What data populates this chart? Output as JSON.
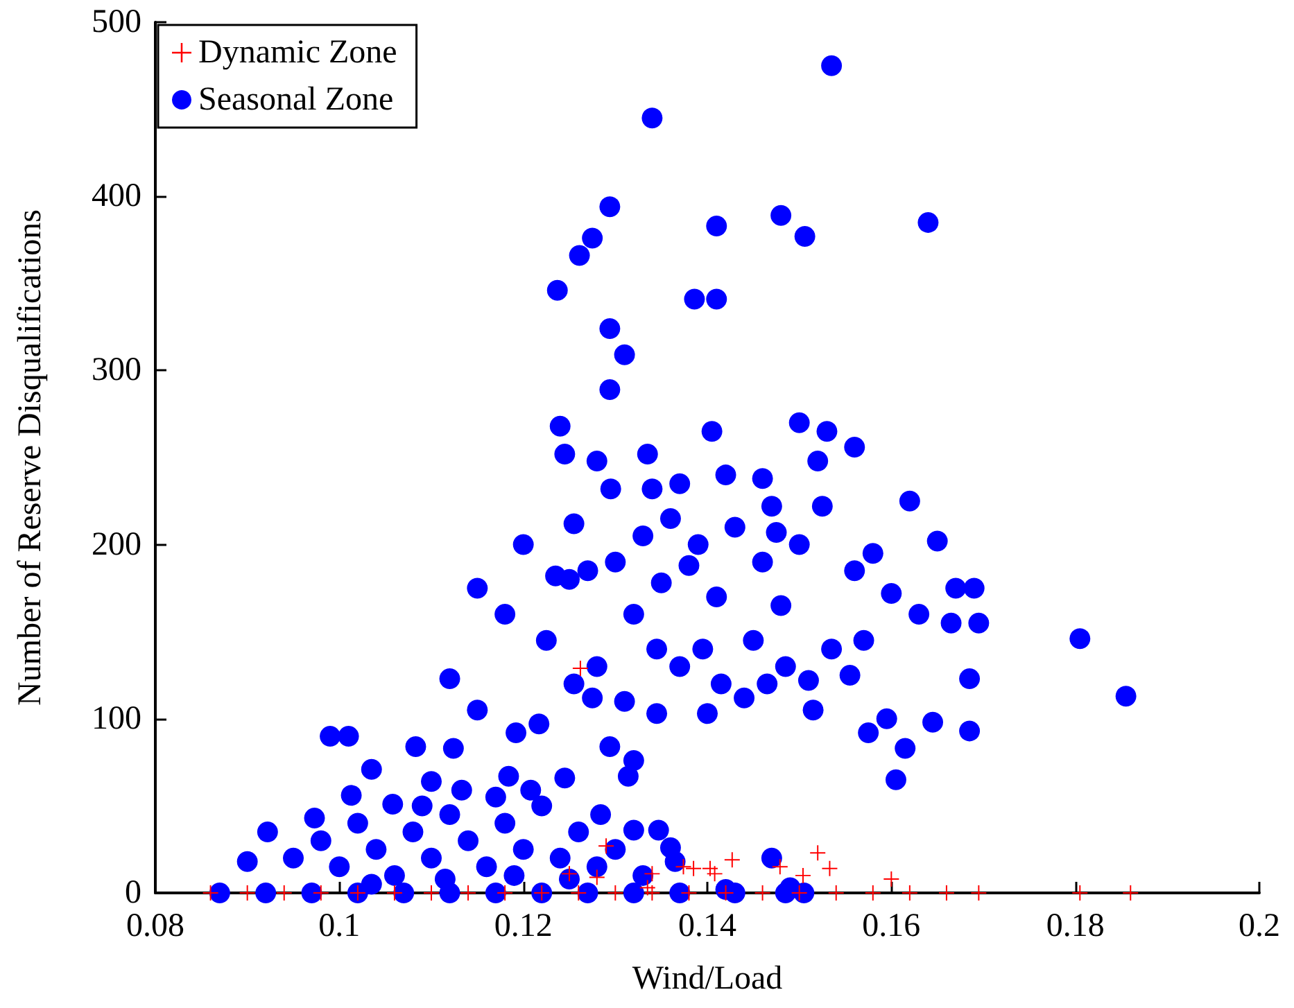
{
  "chart_data": {
    "type": "scatter",
    "xlabel": "Wind/Load",
    "ylabel": "Number of Reserve Disqualifications",
    "xlim": [
      0.08,
      0.2
    ],
    "xticks": [
      0.08,
      0.1,
      0.12,
      0.14,
      0.16,
      0.18,
      0.2
    ],
    "ylim": [
      0,
      500
    ],
    "yticks": [
      0,
      100,
      200,
      300,
      400,
      500
    ],
    "grid": false,
    "legend": "top left",
    "series": [
      {
        "name": "Dynamic Zone",
        "color": "#ff0000",
        "marker": "cross",
        "x": [
          0.086,
          0.09,
          0.094,
          0.098,
          0.102,
          0.106,
          0.11,
          0.114,
          0.118,
          0.122,
          0.126,
          0.13,
          0.134,
          0.138,
          0.142,
          0.146,
          0.15,
          0.154,
          0.158,
          0.162,
          0.166,
          0.1695,
          0.1805,
          0.186,
          0.1262,
          0.152,
          0.1533,
          0.1427,
          0.1479,
          0.16,
          0.1504,
          0.1403,
          0.1374,
          0.129,
          0.125,
          0.128,
          0.134,
          0.1385,
          0.1408,
          0.1335
        ],
        "values": [
          0,
          0,
          0,
          0,
          0,
          0,
          0,
          0,
          0,
          0,
          0,
          0,
          0,
          0,
          0,
          0,
          0,
          0,
          0,
          0,
          0,
          0,
          0,
          0,
          129,
          23,
          14,
          19,
          15,
          8,
          10,
          14,
          15,
          27,
          11,
          9,
          11,
          14,
          11,
          3
        ]
      },
      {
        "name": "Seasonal Zone",
        "color": "#0000ff",
        "marker": "circle",
        "x": [
          0.1535,
          0.134,
          0.1294,
          0.148,
          0.164,
          0.1506,
          0.1275,
          0.1261,
          0.1237,
          0.141,
          0.1386,
          0.141,
          0.1294,
          0.131,
          0.1294,
          0.124,
          0.1245,
          0.128,
          0.1335,
          0.137,
          0.142,
          0.146,
          0.15,
          0.153,
          0.152,
          0.156,
          0.1525,
          0.147,
          0.158,
          0.162,
          0.165,
          0.167,
          0.169,
          0.1665,
          0.163,
          0.16,
          0.156,
          0.15,
          0.146,
          0.143,
          0.139,
          0.136,
          0.133,
          0.13,
          0.127,
          0.125,
          0.1235,
          0.12,
          0.1225,
          0.118,
          0.115,
          0.115,
          0.112,
          0.1255,
          0.128,
          0.1275,
          0.131,
          0.1345,
          0.137,
          0.1395,
          0.1415,
          0.145,
          0.148,
          0.1485,
          0.151,
          0.1535,
          0.1555,
          0.157,
          0.1595,
          0.1575,
          0.1615,
          0.1605,
          0.1645,
          0.1685,
          0.1685,
          0.1695,
          0.1805,
          0.1855,
          0.1345,
          0.14,
          0.144,
          0.1515,
          0.1465,
          0.141,
          0.132,
          0.135,
          0.138,
          0.1255,
          0.1295,
          0.134,
          0.1405,
          0.1475,
          0.099,
          0.101,
          0.1083,
          0.1124,
          0.1035,
          0.1192,
          0.1217,
          0.1294,
          0.132,
          0.1013,
          0.11,
          0.1184,
          0.1245,
          0.1314,
          0.0922,
          0.09,
          0.0973,
          0.1058,
          0.1133,
          0.1208,
          0.1284,
          0.132,
          0.1347,
          0.136,
          0.095,
          0.098,
          0.1,
          0.102,
          0.104,
          0.106,
          0.108,
          0.11,
          0.112,
          0.114,
          0.116,
          0.118,
          0.12,
          0.122,
          0.124,
          0.126,
          0.128,
          0.13,
          0.133,
          0.1035,
          0.109,
          0.117,
          0.1115,
          0.119,
          0.125,
          0.1365,
          0.147,
          0.142,
          0.149,
          0.087,
          0.092,
          0.097,
          0.102,
          0.107,
          0.112,
          0.117,
          0.122,
          0.127,
          0.132,
          0.137,
          0.143,
          0.1485,
          0.1505
        ],
        "values": [
          475,
          445,
          394,
          389,
          385,
          377,
          376,
          366,
          346,
          383,
          341,
          341,
          324,
          309,
          289,
          268,
          252,
          248,
          252,
          235,
          240,
          238,
          270,
          265,
          248,
          256,
          222,
          222,
          195,
          225,
          202,
          175,
          175,
          155,
          160,
          172,
          185,
          200,
          190,
          210,
          200,
          215,
          205,
          190,
          185,
          180,
          182,
          200,
          145,
          160,
          175,
          105,
          123,
          120,
          130,
          112,
          110,
          140,
          130,
          140,
          120,
          145,
          165,
          130,
          122,
          140,
          125,
          145,
          100,
          92,
          83,
          65,
          98,
          93,
          123,
          155,
          146,
          113,
          103,
          103,
          112,
          105,
          120,
          170,
          160,
          178,
          188,
          212,
          232,
          232,
          265,
          207,
          90,
          90,
          84,
          83,
          71,
          92,
          97,
          84,
          76,
          56,
          64,
          67,
          66,
          67,
          35,
          18,
          43,
          51,
          59,
          59,
          45,
          36,
          36,
          26,
          20,
          30,
          15,
          40,
          25,
          10,
          35,
          20,
          45,
          30,
          15,
          40,
          25,
          50,
          20,
          35,
          15,
          25,
          10,
          5,
          50,
          55,
          8,
          10,
          8,
          18,
          20,
          2,
          3,
          0,
          0,
          0,
          0,
          0,
          0,
          0,
          0,
          0,
          0,
          0,
          0,
          0,
          0
        ]
      }
    ]
  }
}
